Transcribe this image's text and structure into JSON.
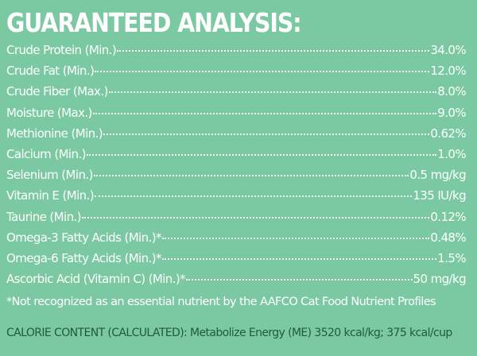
{
  "heading": "GUARANTEED ANALYSIS:",
  "rows": [
    {
      "label": "Crude Protein (Min.)",
      "value": "34.0%"
    },
    {
      "label": "Crude Fat (Min.)",
      "value": "12.0%"
    },
    {
      "label": "Crude Fiber (Max.)",
      "value": "8.0%"
    },
    {
      "label": "Moisture (Max.)",
      "value": "9.0%"
    },
    {
      "label": "Methionine (Min.)",
      "value": "0.62%"
    },
    {
      "label": "Calcium (Min.)",
      "value": "1.0%"
    },
    {
      "label": "Selenium (Min.)",
      "value": "0.5 mg/kg"
    },
    {
      "label": "Vitamin E (Min.)",
      "value": "135 IU/kg"
    },
    {
      "label": "Taurine (Min.)",
      "value": "0.12%"
    },
    {
      "label": "Omega-3 Fatty Acids (Min.)*",
      "value": "0.48%"
    },
    {
      "label": "Omega-6 Fatty Acids (Min.)*",
      "value": "1.5%"
    },
    {
      "label": "Ascorbic Acid (Vitamin C) (Min.)*",
      "value": "50 mg/kg"
    }
  ],
  "footnote": "*Not recognized as an essential nutrient by the AAFCO Cat Food Nutrient Profiles",
  "calorie": "CALORIE CONTENT (CALCULATED): Metabolize Energy (ME) 3520 kcal/kg; 375 kcal/cup",
  "colors": {
    "background": "#7bc9a2",
    "text": "#ffffff",
    "calorie_text": "#1f5a3d"
  }
}
